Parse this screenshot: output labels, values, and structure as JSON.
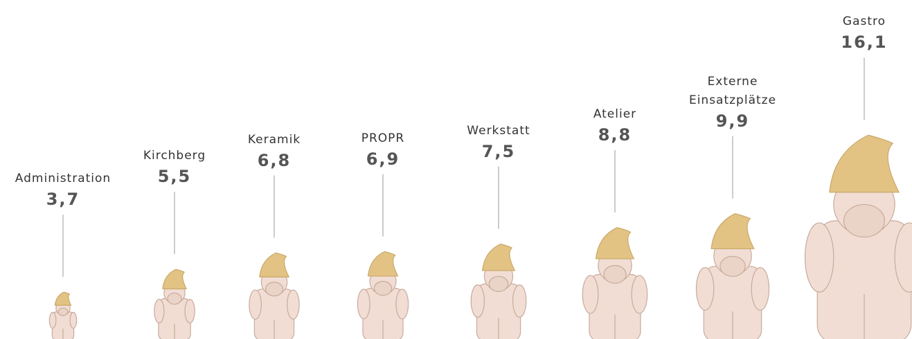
{
  "chart_data": {
    "type": "pictogram",
    "categories": [
      "Administration",
      "Kirchberg",
      "Keramik",
      "PROPR",
      "Werkstatt",
      "Atelier",
      "Externe Einsatzplätze",
      "Gastro"
    ],
    "values": [
      3.7,
      5.5,
      6.8,
      6.9,
      7.5,
      8.8,
      9.9,
      16.1
    ],
    "value_labels": [
      "3,7",
      "5,5",
      "6,8",
      "6,9",
      "7,5",
      "8,8",
      "9,9",
      "16,1"
    ]
  }
}
